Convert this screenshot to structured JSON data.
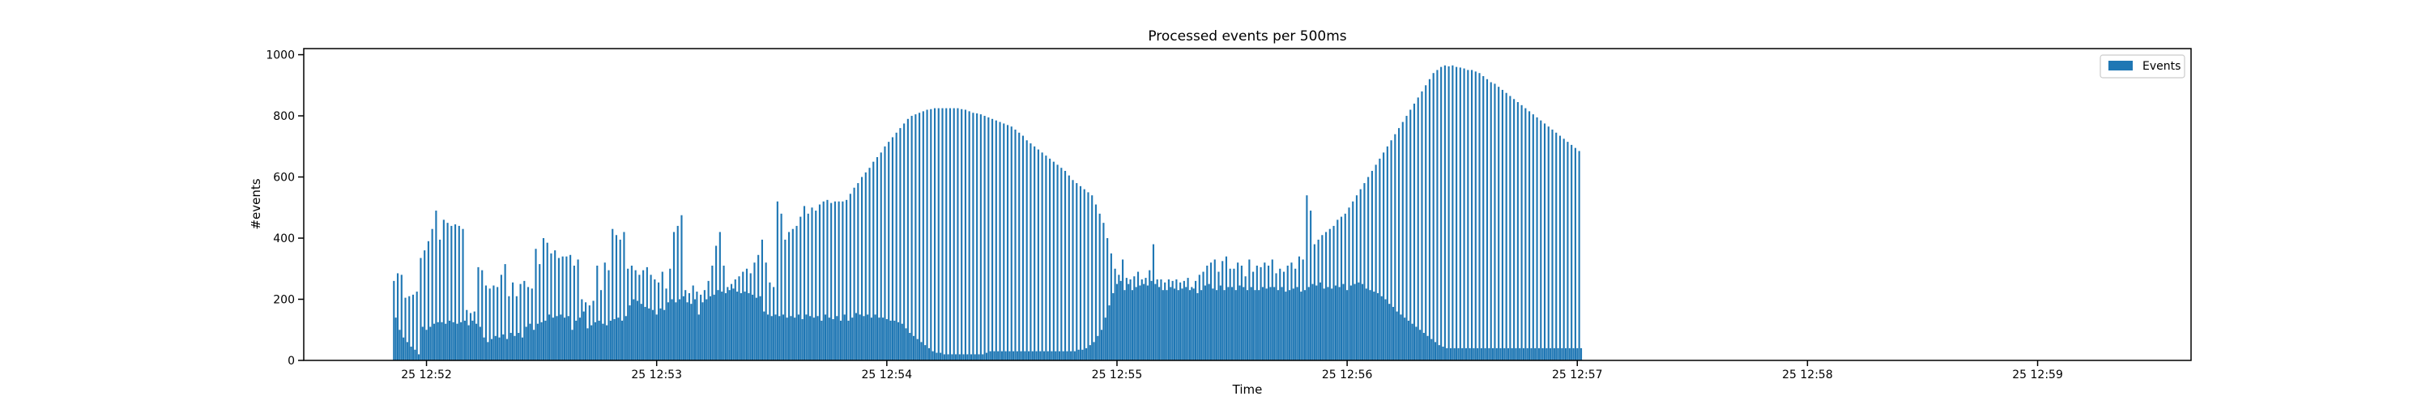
{
  "chart_data": {
    "type": "bar",
    "title": "Processed events per 500ms",
    "xlabel": "Time",
    "ylabel": "#events",
    "ylim": [
      0,
      1020
    ],
    "yticks": [
      0,
      200,
      400,
      600,
      800,
      1000
    ],
    "xlim": [
      "25 12:51:28",
      "25 12:59:40"
    ],
    "xticks": [
      {
        "time": "25 12:52:00",
        "label": "25 12:52"
      },
      {
        "time": "25 12:53:00",
        "label": "25 12:53"
      },
      {
        "time": "25 12:54:00",
        "label": "25 12:54"
      },
      {
        "time": "25 12:55:00",
        "label": "25 12:55"
      },
      {
        "time": "25 12:56:00",
        "label": "25 12:56"
      },
      {
        "time": "25 12:57:00",
        "label": "25 12:57"
      },
      {
        "time": "25 12:58:00",
        "label": "25 12:58"
      },
      {
        "time": "25 12:59:00",
        "label": "25 12:59"
      }
    ],
    "legend": {
      "placement": "top-right",
      "entries": [
        "Events"
      ]
    },
    "grid": false,
    "series": [
      {
        "name": "Events",
        "color": "#1f77b4",
        "interval_s": 0.5,
        "start": "25 12:51:51.5",
        "values": [
          260,
          140,
          285,
          100,
          280,
          75,
          205,
          60,
          210,
          45,
          215,
          35,
          225,
          20,
          335,
          110,
          360,
          100,
          390,
          110,
          430,
          120,
          490,
          125,
          395,
          125,
          460,
          120,
          450,
          130,
          440,
          125,
          445,
          120,
          440,
          125,
          430,
          130,
          165,
          115,
          155,
          130,
          160,
          120,
          305,
          110,
          295,
          75,
          245,
          60,
          235,
          70,
          245,
          80,
          240,
          75,
          280,
          85,
          315,
          70,
          210,
          90,
          255,
          80,
          210,
          90,
          250,
          75,
          260,
          110,
          240,
          120,
          235,
          100,
          365,
          120,
          315,
          125,
          400,
          130,
          385,
          150,
          350,
          140,
          360,
          145,
          335,
          150,
          340,
          140,
          340,
          145,
          345,
          100,
          310,
          130,
          330,
          140,
          200,
          160,
          190,
          105,
          180,
          115,
          195,
          125,
          310,
          130,
          230,
          120,
          320,
          115,
          295,
          130,
          430,
          135,
          410,
          140,
          395,
          130,
          420,
          145,
          300,
          180,
          310,
          200,
          295,
          195,
          280,
          185,
          295,
          175,
          305,
          170,
          280,
          165,
          265,
          150,
          255,
          170,
          290,
          165,
          235,
          190,
          300,
          200,
          420,
          190,
          440,
          200,
          475,
          210,
          230,
          190,
          220,
          185,
          245,
          200,
          225,
          150,
          215,
          190,
          230,
          200,
          260,
          210,
          310,
          215,
          375,
          230,
          420,
          225,
          310,
          220,
          240,
          230,
          250,
          235,
          265,
          225,
          275,
          220,
          290,
          225,
          300,
          220,
          285,
          215,
          320,
          205,
          345,
          210,
          395,
          160,
          320,
          150,
          255,
          145,
          240,
          150,
          520,
          145,
          480,
          150,
          395,
          140,
          420,
          145,
          430,
          140,
          440,
          150,
          470,
          135,
          505,
          150,
          480,
          145,
          500,
          140,
          490,
          145,
          510,
          130,
          520,
          150,
          525,
          140,
          515,
          135,
          520,
          145,
          520,
          130,
          520,
          150,
          525,
          130,
          545,
          140,
          565,
          155,
          580,
          150,
          600,
          145,
          615,
          150,
          630,
          140,
          650,
          150,
          665,
          140,
          680,
          140,
          700,
          135,
          715,
          130,
          730,
          130,
          745,
          125,
          760,
          120,
          775,
          105,
          790,
          90,
          800,
          80,
          805,
          70,
          810,
          60,
          815,
          50,
          820,
          40,
          822,
          30,
          825,
          25,
          825,
          25,
          825,
          20,
          825,
          20,
          825,
          20,
          825,
          20,
          825,
          20,
          822,
          20,
          820,
          20,
          815,
          20,
          810,
          20,
          808,
          20,
          805,
          20,
          800,
          25,
          795,
          30,
          790,
          30,
          785,
          30,
          780,
          30,
          775,
          30,
          770,
          30,
          765,
          30,
          755,
          30,
          745,
          30,
          735,
          30,
          720,
          30,
          710,
          30,
          700,
          30,
          690,
          30,
          680,
          30,
          670,
          30,
          660,
          30,
          650,
          30,
          640,
          30,
          630,
          30,
          620,
          30,
          605,
          30,
          590,
          30,
          580,
          35,
          570,
          35,
          560,
          40,
          550,
          50,
          540,
          60,
          510,
          80,
          480,
          100,
          450,
          140,
          400,
          180,
          350,
          220,
          300,
          250,
          280,
          260,
          330,
          230,
          270,
          250,
          265,
          230,
          275,
          240,
          290,
          245,
          265,
          250,
          270,
          245,
          295,
          260,
          380,
          250,
          265,
          240,
          265,
          230,
          255,
          230,
          265,
          240,
          260,
          235,
          265,
          230,
          255,
          235,
          260,
          240,
          270,
          230,
          240,
          235,
          260,
          220,
          280,
          230,
          290,
          245,
          310,
          250,
          320,
          235,
          330,
          230,
          290,
          245,
          325,
          230,
          340,
          240,
          300,
          240,
          300,
          230,
          320,
          245,
          310,
          240,
          275,
          230,
          330,
          240,
          290,
          230,
          310,
          230,
          305,
          240,
          320,
          235,
          310,
          240,
          330,
          240,
          285,
          230,
          300,
          240,
          290,
          225,
          310,
          230,
          320,
          235,
          300,
          240,
          340,
          225,
          330,
          230,
          540,
          240,
          490,
          250,
          380,
          245,
          395,
          255,
          410,
          235,
          420,
          240,
          430,
          235,
          440,
          245,
          460,
          240,
          470,
          250,
          480,
          230,
          500,
          245,
          520,
          250,
          540,
          255,
          560,
          250,
          580,
          235,
          600,
          230,
          620,
          225,
          640,
          220,
          660,
          210,
          680,
          200,
          700,
          185,
          720,
          175,
          740,
          160,
          760,
          150,
          780,
          140,
          800,
          130,
          820,
          120,
          840,
          110,
          860,
          100,
          880,
          90,
          900,
          80,
          920,
          70,
          940,
          60,
          950,
          50,
          960,
          45,
          965,
          40,
          962,
          40,
          965,
          40,
          960,
          40,
          958,
          40,
          955,
          40,
          950,
          40,
          950,
          40,
          945,
          40,
          940,
          40,
          930,
          40,
          920,
          40,
          910,
          40,
          905,
          40,
          895,
          40,
          885,
          40,
          875,
          40,
          865,
          40,
          855,
          40,
          845,
          40,
          835,
          40,
          825,
          40,
          815,
          40,
          805,
          40,
          795,
          40,
          785,
          40,
          775,
          40,
          765,
          40,
          755,
          40,
          745,
          40,
          735,
          40,
          725,
          40,
          715,
          40,
          705,
          40,
          695,
          40,
          685,
          40
        ]
      }
    ]
  }
}
